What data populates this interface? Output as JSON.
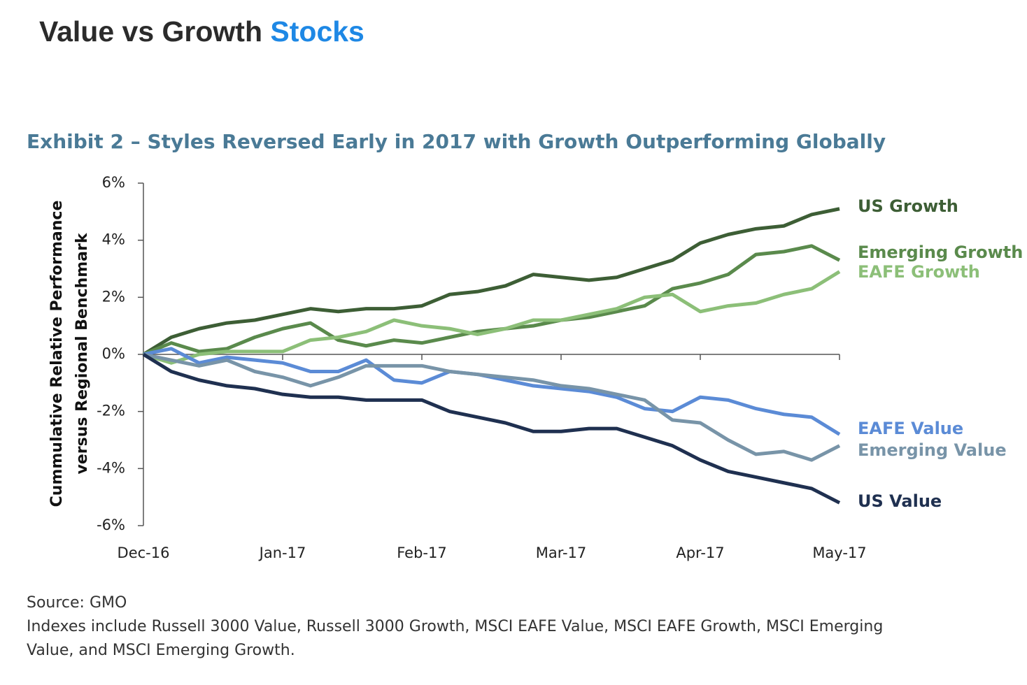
{
  "header": {
    "title": "Value vs Growth",
    "title_highlight": "Stocks"
  },
  "chart_data": {
    "type": "line",
    "title": "Exhibit 2 – Styles Reversed Early in 2017 with Growth Outperforming Globally",
    "y_label": [
      "Cummulative Relative Performance",
      "versus Regional Benchmark"
    ],
    "categories": [
      "Dec-16",
      null,
      null,
      null,
      null,
      "Jan-17",
      null,
      null,
      null,
      null,
      "Feb-17",
      null,
      null,
      null,
      null,
      "Mar-17",
      null,
      null,
      null,
      null,
      "Apr-17",
      null,
      null,
      null,
      null,
      "May-17"
    ],
    "ylim": [
      -6,
      6
    ],
    "yticks": [
      {
        "value": -6,
        "label": "-6%"
      },
      {
        "value": -4,
        "label": "-4%"
      },
      {
        "value": -2,
        "label": "-2%"
      },
      {
        "value": 0,
        "label": "0%"
      },
      {
        "value": 2,
        "label": "2%"
      },
      {
        "value": 4,
        "label": "4%"
      },
      {
        "value": 6,
        "label": "6%"
      }
    ],
    "series": [
      {
        "name": "US Growth",
        "color": "#3d5e35",
        "values": [
          0,
          0.6,
          0.9,
          1.1,
          1.2,
          1.4,
          1.6,
          1.5,
          1.6,
          1.6,
          1.7,
          2.1,
          2.2,
          2.4,
          2.8,
          2.7,
          2.6,
          2.7,
          3.0,
          3.3,
          3.9,
          4.2,
          4.4,
          4.5,
          4.9,
          5.1
        ]
      },
      {
        "name": "Emerging Growth",
        "color": "#5a8a4c",
        "values": [
          0,
          0.4,
          0.1,
          0.2,
          0.6,
          0.9,
          1.1,
          0.5,
          0.3,
          0.5,
          0.4,
          0.6,
          0.8,
          0.9,
          1.0,
          1.2,
          1.3,
          1.5,
          1.7,
          2.3,
          2.5,
          2.8,
          3.5,
          3.6,
          3.8,
          3.3
        ]
      },
      {
        "name": "EAFE Growth",
        "color": "#8cbf78",
        "values": [
          0,
          -0.3,
          0.0,
          0.1,
          0.1,
          0.1,
          0.5,
          0.6,
          0.8,
          1.2,
          1.0,
          0.9,
          0.7,
          0.9,
          1.2,
          1.2,
          1.4,
          1.6,
          2.0,
          2.1,
          1.5,
          1.7,
          1.8,
          2.1,
          2.3,
          2.9
        ]
      },
      {
        "name": "EAFE Value",
        "color": "#5b8bd6",
        "values": [
          0,
          0.2,
          -0.3,
          -0.1,
          -0.2,
          -0.3,
          -0.6,
          -0.6,
          -0.2,
          -0.9,
          -1.0,
          -0.6,
          -0.7,
          -0.9,
          -1.1,
          -1.2,
          -1.3,
          -1.5,
          -1.9,
          -2.0,
          -1.5,
          -1.6,
          -1.9,
          -2.1,
          -2.2,
          -2.8
        ]
      },
      {
        "name": "Emerging Value",
        "color": "#7894a8",
        "values": [
          0,
          -0.2,
          -0.4,
          -0.2,
          -0.6,
          -0.8,
          -1.1,
          -0.8,
          -0.4,
          -0.4,
          -0.4,
          -0.6,
          -0.7,
          -0.8,
          -0.9,
          -1.1,
          -1.2,
          -1.4,
          -1.6,
          -2.3,
          -2.4,
          -3.0,
          -3.5,
          -3.4,
          -3.7,
          -3.2
        ]
      },
      {
        "name": "US Value",
        "color": "#1f3050",
        "values": [
          0,
          -0.6,
          -0.9,
          -1.1,
          -1.2,
          -1.4,
          -1.5,
          -1.5,
          -1.6,
          -1.6,
          -1.6,
          -2.0,
          -2.2,
          -2.4,
          -2.7,
          -2.7,
          -2.6,
          -2.6,
          -2.9,
          -3.2,
          -3.7,
          -4.1,
          -4.3,
          -4.5,
          -4.7,
          -5.2
        ]
      }
    ]
  },
  "footer": {
    "source": "Source: GMO",
    "note": "Indexes include Russell 3000 Value, Russell 3000 Growth, MSCI EAFE Value, MSCI EAFE Growth, MSCI Emerging Value, and MSCI Emerging Growth."
  }
}
